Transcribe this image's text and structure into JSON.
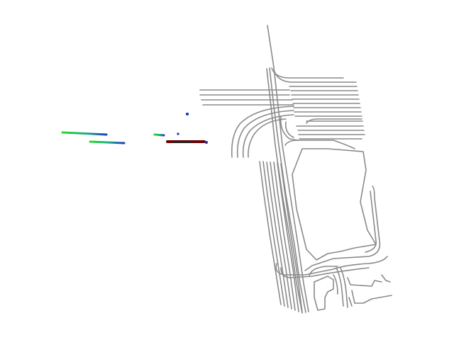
{
  "map": {
    "colors": {
      "background": "#ffffff",
      "lane_line": "#8a8a8a",
      "history_start": "#22dd22",
      "history_end": "#1a3fc0",
      "ego_track": "#6b0000",
      "agent_point": "#1a2fb0"
    }
  }
}
